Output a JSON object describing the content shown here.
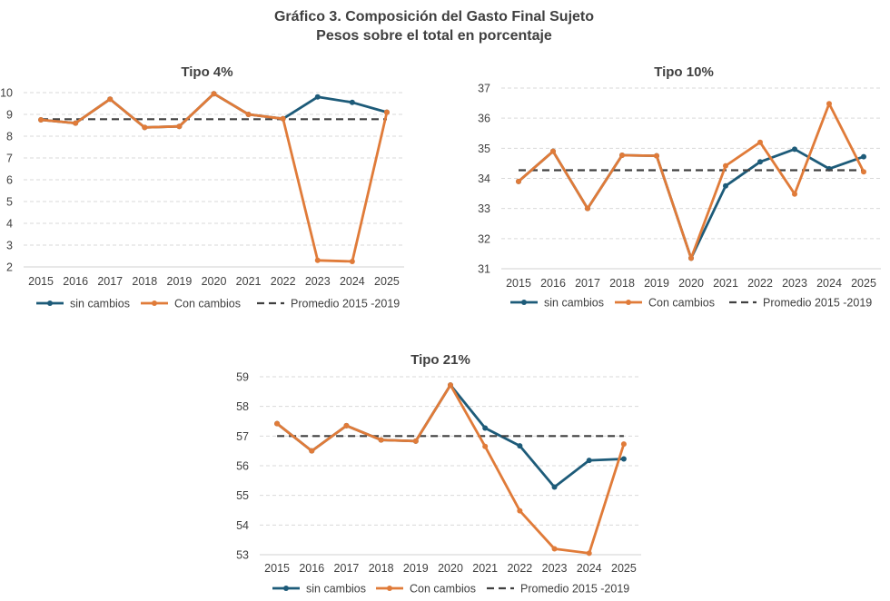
{
  "title": {
    "line1": "Gráfico 3. Composición del Gasto Final Sujeto",
    "line2": "Pesos sobre el total en porcentaje"
  },
  "colors": {
    "sin_cambios": "#1d5b79",
    "con_cambios": "#e07b39",
    "promedio": "#404040"
  },
  "chart_data": [
    {
      "type": "line",
      "title": "Tipo 4%",
      "categories": [
        "2015",
        "2016",
        "2017",
        "2018",
        "2019",
        "2020",
        "2021",
        "2022",
        "2023",
        "2024",
        "2025"
      ],
      "ylim": [
        2,
        10
      ],
      "yticks": [
        "2",
        "3",
        "4",
        "5",
        "6",
        "7",
        "8",
        "9",
        "10"
      ],
      "series": [
        {
          "name": "sin cambios",
          "values": [
            8.75,
            8.6,
            9.7,
            8.4,
            8.45,
            9.95,
            9.0,
            8.8,
            9.8,
            9.55,
            9.1
          ]
        },
        {
          "name": "Con cambios",
          "values": [
            8.75,
            8.6,
            9.7,
            8.4,
            8.45,
            9.95,
            9.0,
            8.8,
            2.3,
            2.25,
            9.1
          ]
        },
        {
          "name": "Promedio 2015 -2019",
          "values": [
            8.78,
            8.78,
            8.78,
            8.78,
            8.78,
            8.78,
            8.78,
            8.78,
            8.78,
            8.78,
            8.78
          ]
        }
      ],
      "legend": [
        "sin cambios",
        "Con cambios",
        "Promedio 2015 -2019"
      ],
      "legend_position": "bottom",
      "grid": true
    },
    {
      "type": "line",
      "title": "Tipo 10%",
      "categories": [
        "2015",
        "2016",
        "2017",
        "2018",
        "2019",
        "2020",
        "2021",
        "2022",
        "2023",
        "2024",
        "2025"
      ],
      "ylim": [
        31,
        37
      ],
      "yticks": [
        "31",
        "32",
        "33",
        "34",
        "35",
        "36",
        "37"
      ],
      "series": [
        {
          "name": "sin cambios",
          "values": [
            33.9,
            34.9,
            33.0,
            34.77,
            34.75,
            31.35,
            33.75,
            34.55,
            34.97,
            34.32,
            34.72
          ]
        },
        {
          "name": "Con cambios",
          "values": [
            33.9,
            34.9,
            33.0,
            34.77,
            34.75,
            31.35,
            34.42,
            35.2,
            33.48,
            36.48,
            34.22
          ]
        },
        {
          "name": "Promedio 2015 -2019",
          "values": [
            34.27,
            34.27,
            34.27,
            34.27,
            34.27,
            34.27,
            34.27,
            34.27,
            34.27,
            34.27,
            34.27
          ]
        }
      ],
      "legend": [
        "sin cambios",
        "Con cambios",
        "Promedio 2015 -2019"
      ],
      "legend_position": "bottom",
      "grid": true
    },
    {
      "type": "line",
      "title": "Tipo 21%",
      "categories": [
        "2015",
        "2016",
        "2017",
        "2018",
        "2019",
        "2020",
        "2021",
        "2022",
        "2023",
        "2024",
        "2025"
      ],
      "ylim": [
        53,
        59
      ],
      "yticks": [
        "53",
        "54",
        "55",
        "56",
        "57",
        "58",
        "59"
      ],
      "series": [
        {
          "name": "sin cambios",
          "values": [
            57.42,
            56.5,
            57.35,
            56.87,
            56.83,
            58.72,
            57.27,
            56.67,
            55.28,
            56.18,
            56.23
          ]
        },
        {
          "name": "Con cambios",
          "values": [
            57.42,
            56.5,
            57.35,
            56.87,
            56.83,
            58.72,
            56.65,
            54.48,
            53.2,
            53.05,
            56.73
          ]
        },
        {
          "name": "Promedio 2015 -2019",
          "values": [
            57.0,
            57.0,
            57.0,
            57.0,
            57.0,
            57.0,
            57.0,
            57.0,
            57.0,
            57.0,
            57.0
          ]
        }
      ],
      "legend": [
        "sin cambios",
        "Con cambios",
        "Promedio 2015 -2019"
      ],
      "legend_position": "bottom",
      "grid": true
    }
  ]
}
